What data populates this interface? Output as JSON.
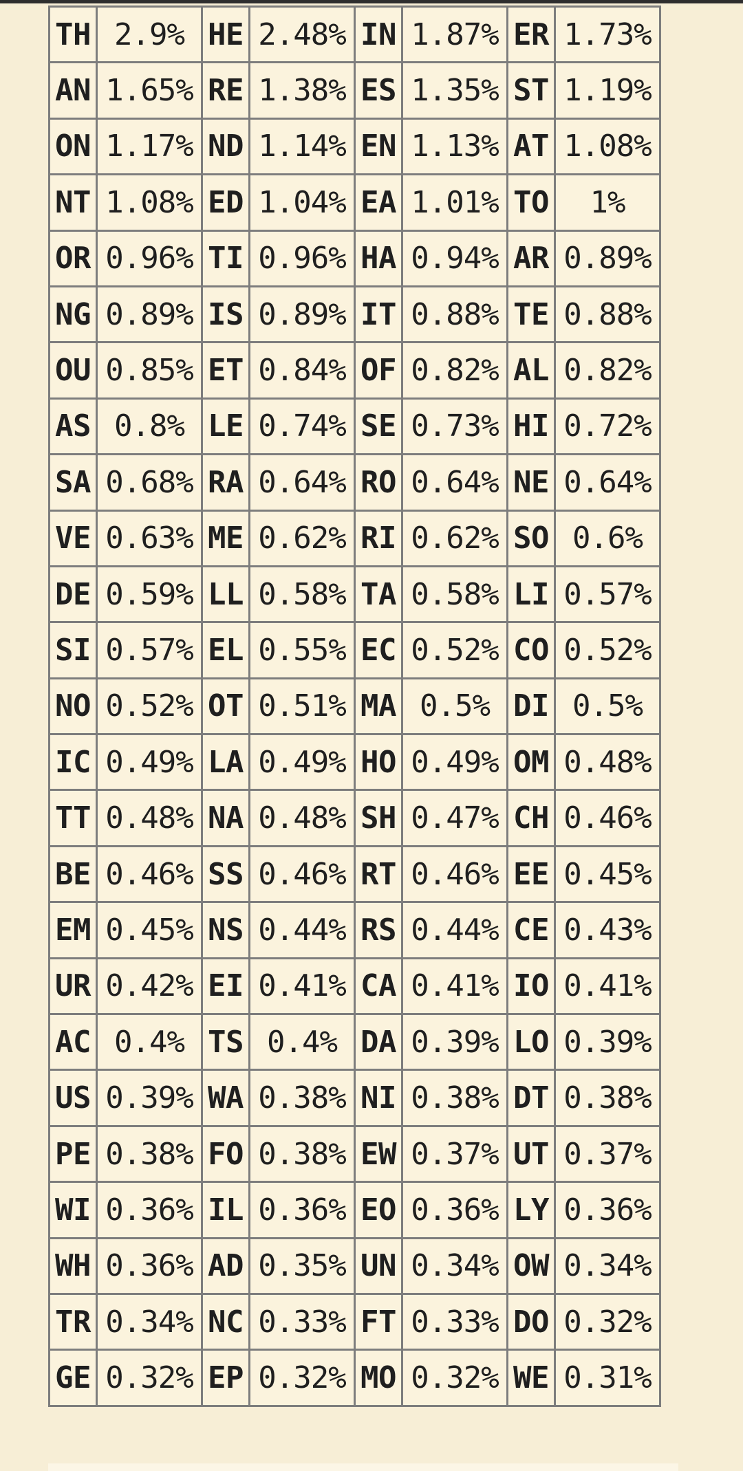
{
  "bigram_table": {
    "rows": [
      [
        [
          "TH",
          "2.9%"
        ],
        [
          "HE",
          "2.48%"
        ],
        [
          "IN",
          "1.87%"
        ],
        [
          "ER",
          "1.73%"
        ]
      ],
      [
        [
          "AN",
          "1.65%"
        ],
        [
          "RE",
          "1.38%"
        ],
        [
          "ES",
          "1.35%"
        ],
        [
          "ST",
          "1.19%"
        ]
      ],
      [
        [
          "ON",
          "1.17%"
        ],
        [
          "ND",
          "1.14%"
        ],
        [
          "EN",
          "1.13%"
        ],
        [
          "AT",
          "1.08%"
        ]
      ],
      [
        [
          "NT",
          "1.08%"
        ],
        [
          "ED",
          "1.04%"
        ],
        [
          "EA",
          "1.01%"
        ],
        [
          "TO",
          "1%"
        ]
      ],
      [
        [
          "OR",
          "0.96%"
        ],
        [
          "TI",
          "0.96%"
        ],
        [
          "HA",
          "0.94%"
        ],
        [
          "AR",
          "0.89%"
        ]
      ],
      [
        [
          "NG",
          "0.89%"
        ],
        [
          "IS",
          "0.89%"
        ],
        [
          "IT",
          "0.88%"
        ],
        [
          "TE",
          "0.88%"
        ]
      ],
      [
        [
          "OU",
          "0.85%"
        ],
        [
          "ET",
          "0.84%"
        ],
        [
          "OF",
          "0.82%"
        ],
        [
          "AL",
          "0.82%"
        ]
      ],
      [
        [
          "AS",
          "0.8%"
        ],
        [
          "LE",
          "0.74%"
        ],
        [
          "SE",
          "0.73%"
        ],
        [
          "HI",
          "0.72%"
        ]
      ],
      [
        [
          "SA",
          "0.68%"
        ],
        [
          "RA",
          "0.64%"
        ],
        [
          "RO",
          "0.64%"
        ],
        [
          "NE",
          "0.64%"
        ]
      ],
      [
        [
          "VE",
          "0.63%"
        ],
        [
          "ME",
          "0.62%"
        ],
        [
          "RI",
          "0.62%"
        ],
        [
          "SO",
          "0.6%"
        ]
      ],
      [
        [
          "DE",
          "0.59%"
        ],
        [
          "LL",
          "0.58%"
        ],
        [
          "TA",
          "0.58%"
        ],
        [
          "LI",
          "0.57%"
        ]
      ],
      [
        [
          "SI",
          "0.57%"
        ],
        [
          "EL",
          "0.55%"
        ],
        [
          "EC",
          "0.52%"
        ],
        [
          "CO",
          "0.52%"
        ]
      ],
      [
        [
          "NO",
          "0.52%"
        ],
        [
          "OT",
          "0.51%"
        ],
        [
          "MA",
          "0.5%"
        ],
        [
          "DI",
          "0.5%"
        ]
      ],
      [
        [
          "IC",
          "0.49%"
        ],
        [
          "LA",
          "0.49%"
        ],
        [
          "HO",
          "0.49%"
        ],
        [
          "OM",
          "0.48%"
        ]
      ],
      [
        [
          "TT",
          "0.48%"
        ],
        [
          "NA",
          "0.48%"
        ],
        [
          "SH",
          "0.47%"
        ],
        [
          "CH",
          "0.46%"
        ]
      ],
      [
        [
          "BE",
          "0.46%"
        ],
        [
          "SS",
          "0.46%"
        ],
        [
          "RT",
          "0.46%"
        ],
        [
          "EE",
          "0.45%"
        ]
      ],
      [
        [
          "EM",
          "0.45%"
        ],
        [
          "NS",
          "0.44%"
        ],
        [
          "RS",
          "0.44%"
        ],
        [
          "CE",
          "0.43%"
        ]
      ],
      [
        [
          "UR",
          "0.42%"
        ],
        [
          "EI",
          "0.41%"
        ],
        [
          "CA",
          "0.41%"
        ],
        [
          "IO",
          "0.41%"
        ]
      ],
      [
        [
          "AC",
          "0.4%"
        ],
        [
          "TS",
          "0.4%"
        ],
        [
          "DA",
          "0.39%"
        ],
        [
          "LO",
          "0.39%"
        ]
      ],
      [
        [
          "US",
          "0.39%"
        ],
        [
          "WA",
          "0.38%"
        ],
        [
          "NI",
          "0.38%"
        ],
        [
          "DT",
          "0.38%"
        ]
      ],
      [
        [
          "PE",
          "0.38%"
        ],
        [
          "FO",
          "0.38%"
        ],
        [
          "EW",
          "0.37%"
        ],
        [
          "UT",
          "0.37%"
        ]
      ],
      [
        [
          "WI",
          "0.36%"
        ],
        [
          "IL",
          "0.36%"
        ],
        [
          "EO",
          "0.36%"
        ],
        [
          "LY",
          "0.36%"
        ]
      ],
      [
        [
          "WH",
          "0.36%"
        ],
        [
          "AD",
          "0.35%"
        ],
        [
          "UN",
          "0.34%"
        ],
        [
          "OW",
          "0.34%"
        ]
      ],
      [
        [
          "TR",
          "0.34%"
        ],
        [
          "NC",
          "0.33%"
        ],
        [
          "FT",
          "0.33%"
        ],
        [
          "DO",
          "0.32%"
        ]
      ],
      [
        [
          "GE",
          "0.32%"
        ],
        [
          "EP",
          "0.32%"
        ],
        [
          "MO",
          "0.32%"
        ],
        [
          "WE",
          "0.31%"
        ]
      ]
    ]
  },
  "colors": {
    "page_background": "#f7eed6",
    "cell_background": "#fbf3dd",
    "grid_border": "#7d7d7d",
    "text": "#1f1f1f"
  }
}
